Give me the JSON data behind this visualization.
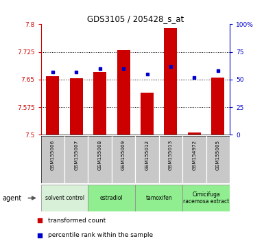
{
  "title": "GDS3105 / 205428_s_at",
  "samples": [
    "GSM155006",
    "GSM155007",
    "GSM155008",
    "GSM155009",
    "GSM155012",
    "GSM155013",
    "GSM154972",
    "GSM155005"
  ],
  "bar_values": [
    7.66,
    7.654,
    7.67,
    7.73,
    7.615,
    7.79,
    7.506,
    7.655
  ],
  "percentile_values": [
    57,
    57,
    60,
    60,
    55,
    62,
    52,
    58
  ],
  "ylim_left": [
    7.5,
    7.8
  ],
  "ylim_right": [
    0,
    100
  ],
  "yticks_left": [
    7.5,
    7.575,
    7.65,
    7.725,
    7.8
  ],
  "yticks_right": [
    0,
    25,
    50,
    75,
    100
  ],
  "ytick_labels_left": [
    "7.5",
    "7.575",
    "7.65",
    "7.725",
    "7.8"
  ],
  "ytick_labels_right": [
    "0",
    "25",
    "50",
    "75",
    "100%"
  ],
  "bar_color": "#cc0000",
  "dot_color": "#0000cc",
  "group_boundaries": [
    [
      0,
      1,
      "solvent control",
      "#d8f0d8"
    ],
    [
      2,
      3,
      "estradiol",
      "#90ee90"
    ],
    [
      4,
      5,
      "tamoxifen",
      "#90ee90"
    ],
    [
      6,
      7,
      "Cimicifuga\nracemosa extract",
      "#90ee90"
    ]
  ],
  "legend_items": [
    {
      "label": "transformed count",
      "color": "#cc0000"
    },
    {
      "label": "percentile rank within the sample",
      "color": "#0000cc"
    }
  ],
  "bar_width": 0.55,
  "sample_bg_color": "#c8c8c8",
  "left_axis_color": "#cc0000",
  "right_axis_color": "#0000cc"
}
